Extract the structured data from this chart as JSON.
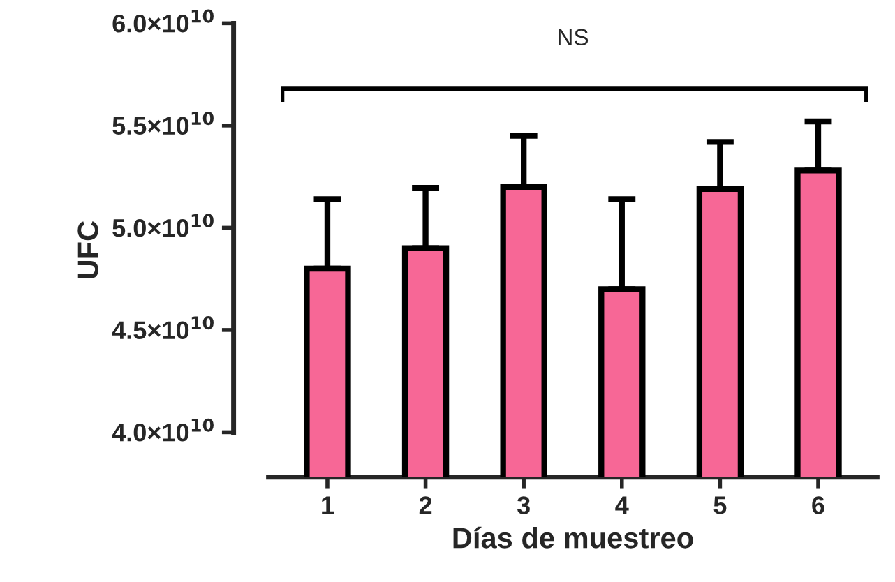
{
  "chart_data": {
    "type": "bar",
    "xlabel": "Días de muestreo",
    "ylabel": "UFC",
    "categories": [
      "1",
      "2",
      "3",
      "4",
      "5",
      "6"
    ],
    "values": [
      48000000000.0,
      49000000000.0,
      52000000000.0,
      47000000000.0,
      51900000000.0,
      52800000000.0
    ],
    "errors": [
      [
        48000000000.0,
        51400000000.0
      ],
      [
        49000000000.0,
        51950000000.0
      ],
      [
        52000000000.0,
        54500000000.0
      ],
      [
        47000000000.0,
        51400000000.0
      ],
      [
        51900000000.0,
        54200000000.0
      ],
      [
        52800000000.0,
        55200000000.0
      ]
    ],
    "color": "#f76796",
    "ylim": [
      37800000000.0,
      60000000000.0
    ],
    "yticks": [
      {
        "value": 40000000000.0,
        "label": "4.0×10$^{10}$"
      },
      {
        "value": 45000000000.0,
        "label": "4.5×10$^{10}$"
      },
      {
        "value": 50000000000.0,
        "label": "5.0×10$^{10}$"
      },
      {
        "value": 55000000000.0,
        "label": "5.5×10$^{10}$"
      },
      {
        "value": 60000000000.0,
        "label": "6.0×10$^{10}$"
      }
    ],
    "annotations": [
      "NS"
    ],
    "grid": false,
    "legend": false
  }
}
